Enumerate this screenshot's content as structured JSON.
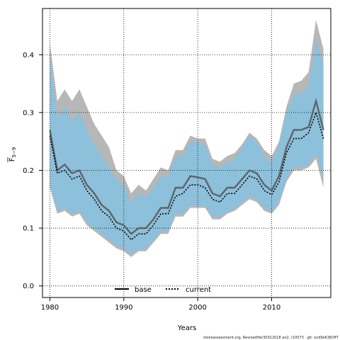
{
  "chart_data": {
    "type": "line",
    "xlabel": "Years",
    "ylabel_main": "F",
    "ylabel_sub": "5−9",
    "xlim": [
      1979,
      2018
    ],
    "ylim": [
      -0.02,
      0.48
    ],
    "x_ticks": [
      1980,
      1990,
      2000,
      2010
    ],
    "y_ticks": [
      0.0,
      0.1,
      0.2,
      0.3,
      0.4
    ],
    "y_tick_labels": [
      "0.0",
      "0.1",
      "0.2",
      "0.3",
      "0.4"
    ],
    "grid": true,
    "legend_position": "bottom",
    "x": [
      1980,
      1981,
      1982,
      1983,
      1984,
      1985,
      1986,
      1987,
      1988,
      1989,
      1990,
      1991,
      1992,
      1993,
      1994,
      1995,
      1996,
      1997,
      1998,
      1999,
      2000,
      2001,
      2002,
      2003,
      2004,
      2005,
      2006,
      2007,
      2008,
      2009,
      2010,
      2011,
      2012,
      2013,
      2014,
      2015,
      2016,
      2017
    ],
    "series": [
      {
        "name": "base",
        "color": "#555555",
        "style": "solid",
        "band_color": "#b3b3b3",
        "values": [
          0.27,
          0.2,
          0.21,
          0.195,
          0.2,
          0.175,
          0.16,
          0.14,
          0.13,
          0.11,
          0.105,
          0.09,
          0.1,
          0.1,
          0.115,
          0.135,
          0.135,
          0.17,
          0.17,
          0.19,
          0.188,
          0.185,
          0.16,
          0.155,
          0.17,
          0.17,
          0.185,
          0.2,
          0.195,
          0.175,
          0.165,
          0.19,
          0.24,
          0.27,
          0.27,
          0.275,
          0.32,
          0.27
        ],
        "lower": [
          0.17,
          0.125,
          0.13,
          0.12,
          0.125,
          0.105,
          0.095,
          0.085,
          0.075,
          0.065,
          0.06,
          0.05,
          0.06,
          0.06,
          0.075,
          0.09,
          0.09,
          0.12,
          0.12,
          0.135,
          0.135,
          0.135,
          0.115,
          0.115,
          0.125,
          0.13,
          0.14,
          0.15,
          0.145,
          0.13,
          0.125,
          0.14,
          0.18,
          0.2,
          0.2,
          0.205,
          0.22,
          0.17
        ],
        "upper": [
          0.42,
          0.32,
          0.34,
          0.32,
          0.34,
          0.31,
          0.28,
          0.26,
          0.24,
          0.2,
          0.19,
          0.16,
          0.175,
          0.165,
          0.185,
          0.205,
          0.2,
          0.235,
          0.235,
          0.26,
          0.255,
          0.255,
          0.22,
          0.215,
          0.225,
          0.23,
          0.245,
          0.265,
          0.255,
          0.235,
          0.225,
          0.25,
          0.31,
          0.35,
          0.355,
          0.37,
          0.46,
          0.41
        ]
      },
      {
        "name": "current",
        "color": "#000000",
        "style": "dotted",
        "band_color": "#7fc3e6",
        "values": [
          0.26,
          0.195,
          0.2,
          0.185,
          0.19,
          0.165,
          0.15,
          0.13,
          0.12,
          0.1,
          0.095,
          0.08,
          0.09,
          0.09,
          0.105,
          0.125,
          0.125,
          0.155,
          0.16,
          0.175,
          0.175,
          0.17,
          0.15,
          0.145,
          0.16,
          0.16,
          0.175,
          0.19,
          0.185,
          0.165,
          0.158,
          0.18,
          0.23,
          0.255,
          0.255,
          0.265,
          0.3,
          0.255
        ],
        "lower": [
          0.175,
          0.13,
          0.135,
          0.125,
          0.13,
          0.11,
          0.1,
          0.09,
          0.08,
          0.07,
          0.065,
          0.055,
          0.063,
          0.065,
          0.078,
          0.095,
          0.095,
          0.125,
          0.125,
          0.14,
          0.138,
          0.138,
          0.12,
          0.12,
          0.128,
          0.133,
          0.145,
          0.155,
          0.15,
          0.135,
          0.128,
          0.145,
          0.185,
          0.205,
          0.205,
          0.21,
          0.23,
          0.185
        ],
        "upper": [
          0.4,
          0.29,
          0.31,
          0.285,
          0.3,
          0.27,
          0.245,
          0.225,
          0.205,
          0.185,
          0.175,
          0.145,
          0.16,
          0.155,
          0.17,
          0.19,
          0.19,
          0.225,
          0.225,
          0.25,
          0.248,
          0.245,
          0.21,
          0.205,
          0.215,
          0.22,
          0.24,
          0.26,
          0.25,
          0.225,
          0.215,
          0.245,
          0.3,
          0.33,
          0.335,
          0.345,
          0.43,
          0.385
        ]
      }
    ]
  },
  "footer": "stockassessment.org, RevisedHer30312018 an2, r10073 , git: ecd9e6382ff7"
}
